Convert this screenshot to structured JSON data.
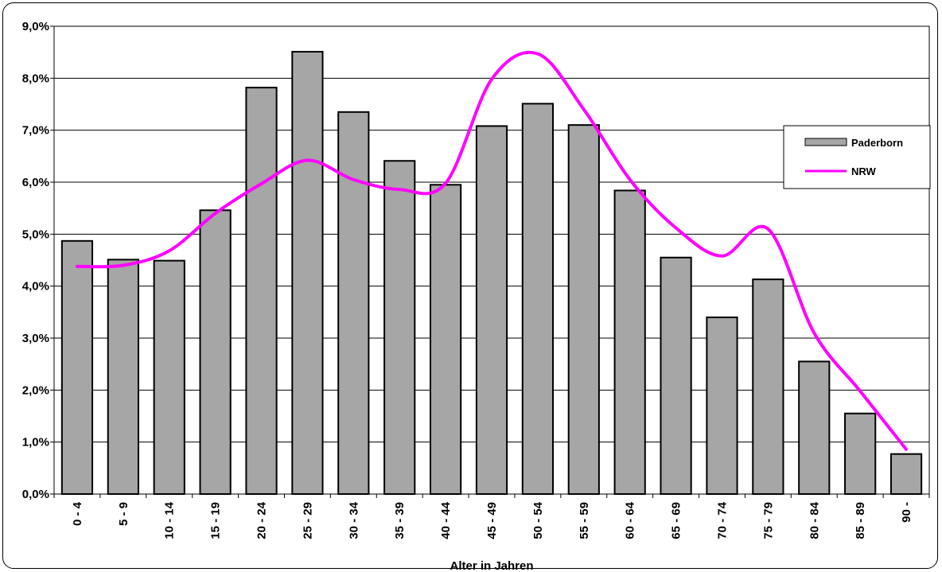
{
  "chart_data": {
    "type": "bar",
    "title": "",
    "xlabel": "Alter in Jahren",
    "ylabel": "",
    "ylim": [
      0,
      9
    ],
    "yticks": [
      "0,0%",
      "1,0%",
      "2,0%",
      "3,0%",
      "4,0%",
      "5,0%",
      "6,0%",
      "7,0%",
      "8,0%",
      "9,0%"
    ],
    "grid": true,
    "legend_position": "right",
    "categories": [
      "0 - 4",
      "5 - 9",
      "10 - 14",
      "15 - 19",
      "20 - 24",
      "25 - 29",
      "30 - 34",
      "35 - 39",
      "40 - 44",
      "45 - 49",
      "50 - 54",
      "55 - 59",
      "60 - 64",
      "65 - 69",
      "70 - 74",
      "75 - 79",
      "80 - 84",
      "85 - 89",
      "90 -"
    ],
    "series": [
      {
        "name": "Paderborn",
        "type": "bar",
        "color": "#a6a6a6",
        "values": [
          4.87,
          4.51,
          4.49,
          5.46,
          7.82,
          8.51,
          7.35,
          6.41,
          5.95,
          7.08,
          7.51,
          7.1,
          5.84,
          4.55,
          3.4,
          4.13,
          2.55,
          1.55,
          0.77
        ]
      },
      {
        "name": "NRW",
        "type": "line",
        "color": "#ff00ff",
        "values": [
          4.38,
          4.4,
          4.68,
          5.4,
          5.97,
          6.42,
          6.05,
          5.86,
          5.98,
          7.98,
          8.47,
          7.4,
          6.05,
          5.12,
          4.58,
          5.1,
          3.1,
          1.98,
          0.86
        ]
      }
    ]
  }
}
